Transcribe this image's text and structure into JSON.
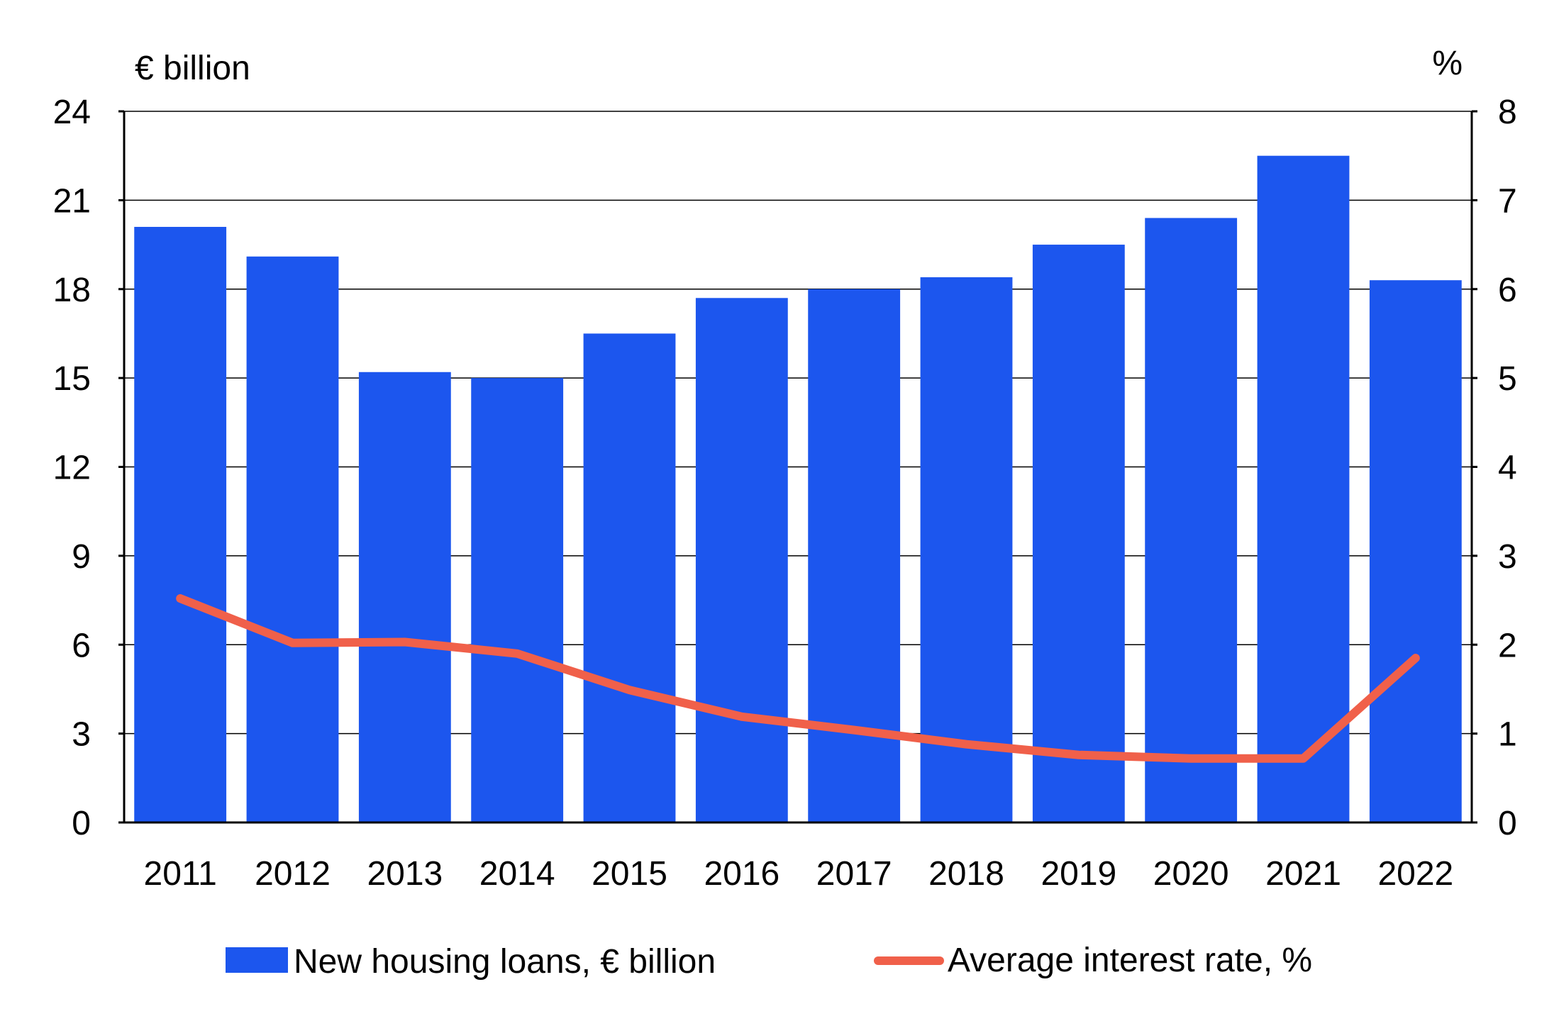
{
  "chart_data": {
    "type": "bar",
    "categories": [
      "2011",
      "2012",
      "2013",
      "2014",
      "2015",
      "2016",
      "2017",
      "2018",
      "2019",
      "2020",
      "2021",
      "2022"
    ],
    "series": [
      {
        "name": "New housing loans, € billion",
        "kind": "bar",
        "axis": "left",
        "values": [
          20.1,
          19.1,
          15.2,
          15.0,
          16.5,
          17.7,
          18.0,
          18.4,
          19.5,
          20.4,
          22.5,
          18.3
        ]
      },
      {
        "name": "Average interest rate, %",
        "kind": "line",
        "axis": "right",
        "values": [
          2.52,
          2.02,
          2.03,
          1.9,
          1.49,
          1.19,
          1.04,
          0.88,
          0.76,
          0.72,
          0.72,
          1.85
        ]
      }
    ],
    "left_axis": {
      "label": "€ billion",
      "range": [
        0,
        24
      ],
      "ticks": [
        0,
        3,
        6,
        9,
        12,
        15,
        18,
        21,
        24
      ]
    },
    "right_axis": {
      "label": "%",
      "range": [
        0,
        8
      ],
      "ticks": [
        0,
        1,
        2,
        3,
        4,
        5,
        6,
        7,
        8
      ]
    },
    "grid": true,
    "legend_position": "bottom",
    "colors": {
      "bar": "#1c56ee",
      "line": "#f0604a",
      "axis": "#000000",
      "grid": "#000000"
    }
  }
}
